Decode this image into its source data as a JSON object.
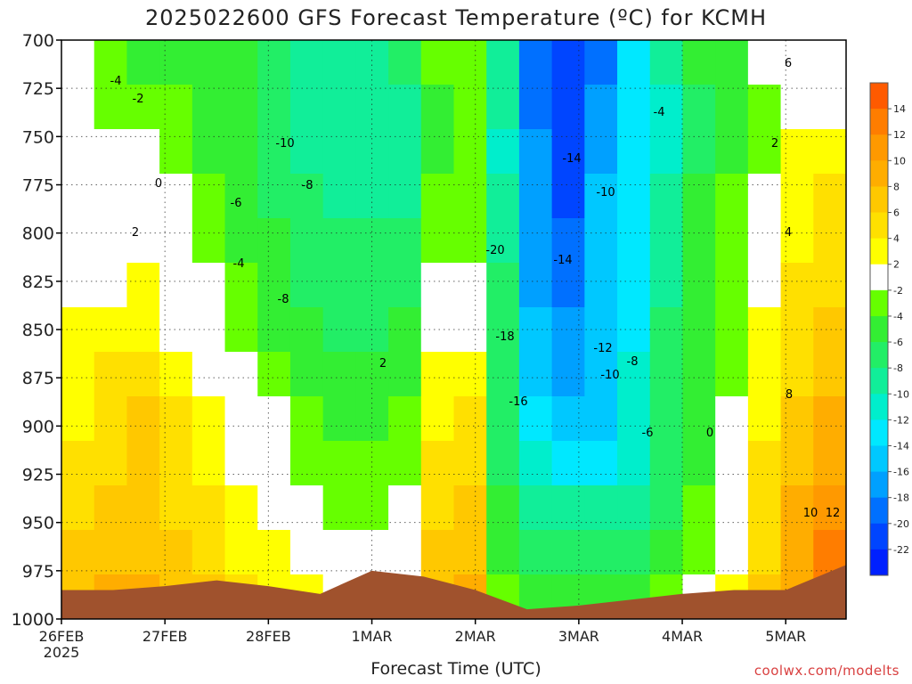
{
  "page": {
    "title": "2025022600 GFS Forecast Temperature (ºC) for KCMH",
    "credit": "coolwx.com/modelts"
  },
  "chart_data": {
    "type": "heatmap",
    "title": "2025022600 GFS Forecast Temperature (ºC) for KCMH",
    "xlabel": "Forecast Time (UTC)",
    "ylabel": "",
    "y_axis": {
      "ticks": [
        700,
        725,
        750,
        775,
        800,
        825,
        850,
        875,
        900,
        925,
        950,
        975,
        1000
      ],
      "range": [
        700,
        1000
      ],
      "inverted": true
    },
    "x_axis": {
      "range_hours": [
        0,
        182
      ],
      "ticks": [
        {
          "label": "26FEB",
          "sublabel": "2025",
          "hour": 0
        },
        {
          "label": "27FEB",
          "hour": 24
        },
        {
          "label": "28FEB",
          "hour": 48
        },
        {
          "label": "1MAR",
          "hour": 72
        },
        {
          "label": "2MAR",
          "hour": 96
        },
        {
          "label": "3MAR",
          "hour": 120
        },
        {
          "label": "4MAR",
          "hour": 144
        },
        {
          "label": "5MAR",
          "hour": 168
        }
      ]
    },
    "colorbar": {
      "labels": [
        14,
        12,
        10,
        8,
        6,
        4,
        2,
        -2,
        -4,
        -6,
        -8,
        -10,
        -12,
        -14,
        -16,
        -18,
        -20,
        -22
      ],
      "bands": [
        {
          "from": 14,
          "to": 16,
          "color": "#ff5a00"
        },
        {
          "from": 12,
          "to": 14,
          "color": "#ff7d00"
        },
        {
          "from": 10,
          "to": 12,
          "color": "#ff9900"
        },
        {
          "from": 8,
          "to": 10,
          "color": "#ffad00"
        },
        {
          "from": 6,
          "to": 8,
          "color": "#ffc800"
        },
        {
          "from": 4,
          "to": 6,
          "color": "#ffe000"
        },
        {
          "from": 2,
          "to": 4,
          "color": "#ffff00"
        },
        {
          "from": -2,
          "to": 2,
          "color": "#ffffff"
        },
        {
          "from": -4,
          "to": -2,
          "color": "#66ff00"
        },
        {
          "from": -6,
          "to": -4,
          "color": "#33ee33"
        },
        {
          "from": -8,
          "to": -6,
          "color": "#22ee66"
        },
        {
          "from": -10,
          "to": -8,
          "color": "#11ee99"
        },
        {
          "from": -12,
          "to": -10,
          "color": "#00eecc"
        },
        {
          "from": -14,
          "to": -12,
          "color": "#00e8ff"
        },
        {
          "from": -16,
          "to": -14,
          "color": "#00c8ff"
        },
        {
          "from": -18,
          "to": -16,
          "color": "#00a0ff"
        },
        {
          "from": -20,
          "to": -18,
          "color": "#0070ff"
        },
        {
          "from": -22,
          "to": -20,
          "color": "#0045ff"
        },
        {
          "from": -24,
          "to": -22,
          "color": "#0020ff"
        }
      ]
    },
    "grid": "dotted",
    "ground_color": "#a0522d",
    "freezing_line_color": "#c0186e",
    "series": [
      {
        "values": [
          [
            -1,
            -3,
            -5,
            -5,
            -6,
            -6,
            -8,
            -10,
            -9,
            -10,
            -8,
            -4,
            -3,
            -10,
            -19,
            -22,
            -19,
            -13,
            -10,
            -6,
            -5,
            -2,
            0,
            1
          ],
          [
            -2,
            -3,
            -4,
            -4,
            -5,
            -6,
            -8,
            -10,
            -10,
            -10,
            -9,
            -6,
            -4,
            -10,
            -19,
            -22,
            -18,
            -14,
            -11,
            -7,
            -5,
            -3,
            -1,
            1
          ],
          [
            -1,
            -1,
            -2,
            -3,
            -5,
            -6,
            -7,
            -9,
            -10,
            -10,
            -9,
            -5,
            -4,
            -11,
            -18,
            -21,
            -17,
            -14,
            -11,
            -7,
            -5,
            -3,
            2,
            3
          ],
          [
            0,
            0,
            0,
            -2,
            -4,
            -6,
            -7,
            -8,
            -9,
            -9,
            -9,
            -4,
            -4,
            -10,
            -18,
            -21,
            -16,
            -14,
            -10,
            -6,
            -4,
            -2,
            2,
            4
          ],
          [
            1,
            0,
            1,
            -1,
            -3,
            -5,
            -6,
            -8,
            -8,
            -8,
            -8,
            -3,
            -3,
            -9,
            -17,
            -20,
            -16,
            -14,
            -9,
            -6,
            -4,
            -1,
            3,
            4
          ],
          [
            1,
            1,
            2,
            0,
            -2,
            -4,
            -5,
            -7,
            -8,
            -8,
            -7,
            -2,
            -2,
            -8,
            -17,
            -19,
            -15,
            -14,
            -9,
            -6,
            -4,
            1,
            4,
            5
          ],
          [
            2,
            2,
            3,
            1,
            -1,
            -3,
            -5,
            -6,
            -7,
            -7,
            -6,
            0,
            0,
            -8,
            -16,
            -18,
            -15,
            -13,
            -8,
            -6,
            -4,
            2,
            4,
            6
          ],
          [
            3,
            4,
            5,
            3,
            1,
            -2,
            -3,
            -5,
            -6,
            -6,
            -5,
            2,
            2,
            -8,
            -15,
            -17,
            -16,
            -12,
            -8,
            -6,
            -3,
            3,
            5,
            7
          ],
          [
            3,
            4,
            6,
            4,
            2,
            0,
            -2,
            -4,
            -5,
            -5,
            -4,
            3,
            4,
            -8,
            -13,
            -16,
            -15,
            -12,
            -8,
            -6,
            -2,
            3,
            6,
            8
          ],
          [
            4,
            5,
            6,
            5,
            3,
            1,
            0,
            -3,
            -4,
            -4,
            -3,
            4,
            5,
            -8,
            -11,
            -13,
            -13,
            -11,
            -8,
            -5,
            -1,
            4,
            7,
            9
          ],
          [
            5,
            6,
            7,
            5,
            4,
            2,
            1,
            -1,
            -3,
            -3,
            -2,
            5,
            6,
            -6,
            -9,
            -10,
            -10,
            -9,
            -7,
            -4,
            0,
            4,
            8,
            10
          ],
          [
            6,
            7,
            7,
            6,
            5,
            3,
            2,
            1,
            -1,
            -2,
            -1,
            6,
            7,
            -5,
            -7,
            -8,
            -8,
            -7,
            -5,
            -3,
            1,
            5,
            8,
            12
          ],
          [
            7,
            8,
            8,
            7,
            6,
            4,
            3,
            2,
            0,
            -1,
            0,
            7,
            8,
            -3,
            -5,
            -6,
            -6,
            -5,
            -3,
            -2,
            2,
            6,
            9,
            13
          ]
        ]
      }
    ],
    "contour_labels": [
      "-4",
      "-2",
      "-10",
      "-8",
      "-6",
      "0",
      "2",
      "-4",
      "-8",
      "2",
      "-14",
      "-10",
      "-20",
      "-18",
      "-16",
      "-14",
      "-12",
      "-10",
      "-8",
      "-6",
      "-4",
      "6",
      "4",
      "2",
      "0",
      "8",
      "10",
      "12"
    ]
  }
}
